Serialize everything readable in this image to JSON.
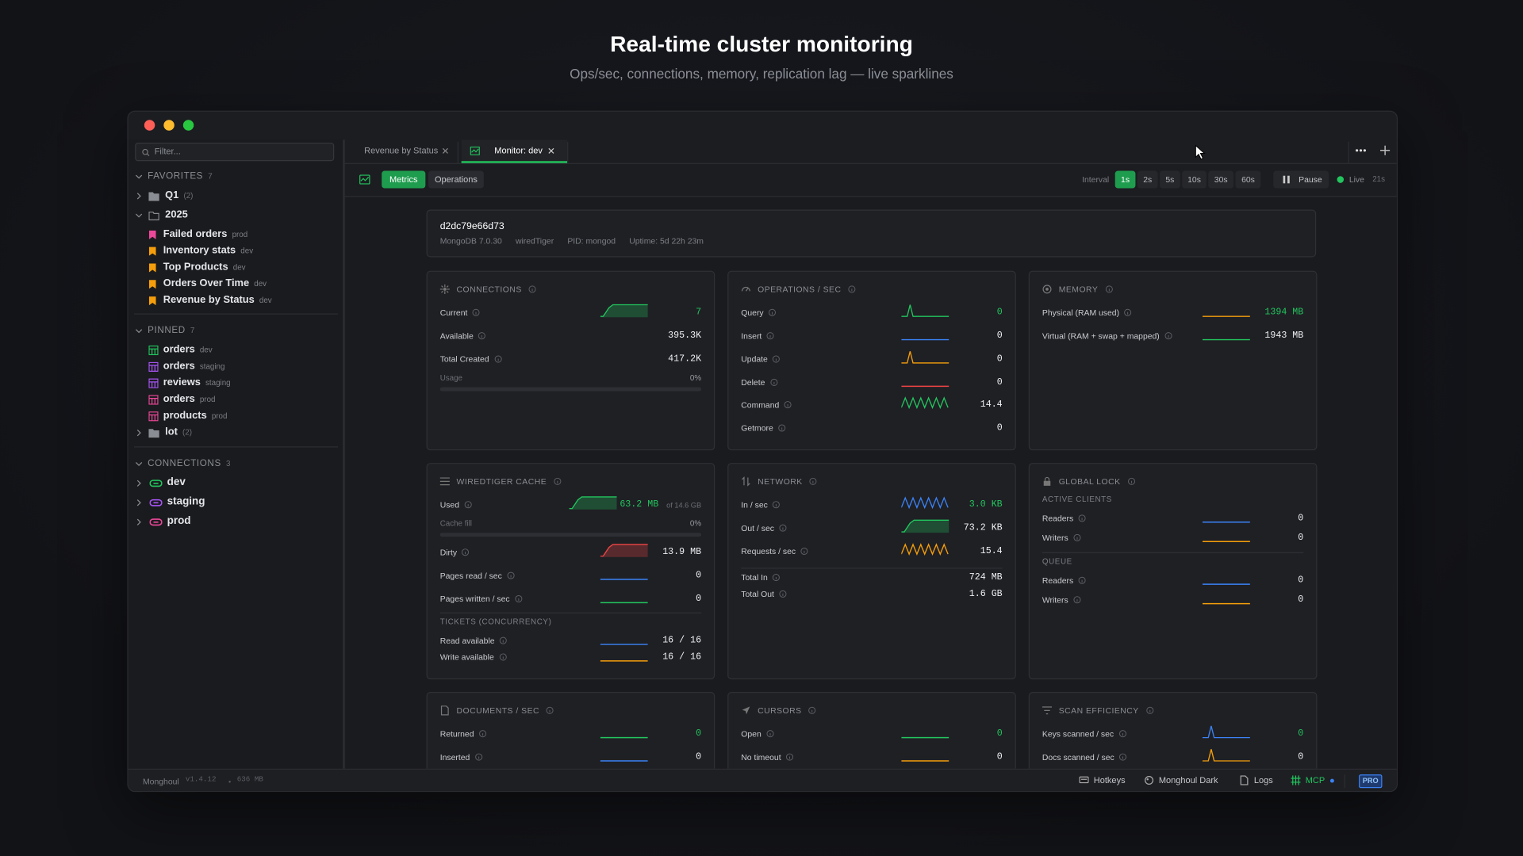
{
  "header": {
    "title": "Real-time cluster monitoring",
    "subtitle": "Ops/sec, connections, memory, replication lag — live sparklines"
  },
  "sidebar": {
    "filter": "Filter...",
    "sections": [
      {
        "title": "FAVORITES",
        "count": 7,
        "items": [
          {
            "label": "Q1",
            "count": "(2)"
          },
          {
            "label": "2025",
            "children": [
              {
                "label": "Failed orders",
                "env": "prod"
              },
              {
                "label": "Inventory stats",
                "env": "dev"
              },
              {
                "label": "Top Products",
                "env": "dev"
              },
              {
                "label": "Orders Over Time",
                "env": "dev"
              },
              {
                "label": "Revenue by Status",
                "env": "dev"
              }
            ]
          }
        ]
      },
      {
        "title": "PINNED",
        "count": 7,
        "items": [
          {
            "label": "orders",
            "env": "dev"
          },
          {
            "label": "orders",
            "env": "staging"
          },
          {
            "label": "reviews",
            "env": "staging"
          },
          {
            "label": "orders",
            "env": "prod"
          },
          {
            "label": "products",
            "env": "prod"
          },
          {
            "label": "lot",
            "count": "(2)"
          }
        ]
      },
      {
        "title": "CONNECTIONS",
        "count": 3,
        "items": [
          {
            "label": "dev"
          },
          {
            "label": "staging"
          },
          {
            "label": "prod"
          }
        ]
      }
    ]
  },
  "tabs": [
    "Revenue by Status",
    "Monitor: dev"
  ],
  "toolbar": {
    "views": [
      "Metrics",
      "Operations"
    ],
    "interval_label": "Interval",
    "intervals": [
      "1s",
      "2s",
      "5s",
      "10s",
      "30s",
      "60s"
    ],
    "pause": "Pause",
    "live": "Live",
    "elapsed": "21s"
  },
  "host": {
    "id": "d2dc79e66d73",
    "meta": [
      "MongoDB 7.0.30",
      "wiredTiger",
      "PID: mongod",
      "Uptime: 5d 22h 23m"
    ]
  },
  "cards": [
    {
      "title": "CONNECTIONS",
      "rows": [
        {
          "label": "Current",
          "value": 7
        },
        {
          "label": "Available",
          "value": "395.3K"
        },
        {
          "label": "Total Created",
          "value": "417.2K"
        },
        {
          "label": "Usage",
          "value": "0%"
        }
      ]
    },
    {
      "title": "OPERATIONS / SEC",
      "rows": [
        {
          "label": "Query",
          "value": 0
        },
        {
          "label": "Insert",
          "value": 0
        },
        {
          "label": "Update",
          "value": 0
        },
        {
          "label": "Delete",
          "value": 0
        },
        {
          "label": "Command",
          "value": 14.4
        },
        {
          "label": "Getmore",
          "value": 0
        }
      ]
    },
    {
      "title": "MEMORY",
      "rows": [
        {
          "label": "Physical (RAM used)",
          "value": "1394 MB"
        },
        {
          "label": "Virtual (RAM + swap + mapped)",
          "value": "1943 MB"
        }
      ]
    },
    {
      "title": "WIREDTIGER CACHE",
      "rows": [
        {
          "label": "Used",
          "value": "63.2 MB",
          "note": "of 14.6 GB"
        },
        {
          "label": "Cache fill",
          "value": "0%"
        },
        {
          "label": "Dirty",
          "value": "13.9 MB"
        },
        {
          "label": "Pages read / sec",
          "value": 0
        },
        {
          "label": "Pages written / sec",
          "value": 0
        },
        {
          "heading": "TICKETS (CONCURRENCY)"
        },
        {
          "label": "Read available",
          "value": "16 / 16"
        },
        {
          "label": "Write available",
          "value": "16 / 16"
        }
      ]
    },
    {
      "title": "NETWORK",
      "rows": [
        {
          "label": "In / sec",
          "value": "3.0 KB"
        },
        {
          "label": "Out / sec",
          "value": "73.2 KB"
        },
        {
          "label": "Requests / sec",
          "value": 15.4
        },
        {
          "label": "Total In",
          "value": "724 MB"
        },
        {
          "label": "Total Out",
          "value": "1.6 GB"
        }
      ]
    },
    {
      "title": "GLOBAL LOCK",
      "rows": [
        {
          "heading": "ACTIVE CLIENTS"
        },
        {
          "label": "Readers",
          "value": 0
        },
        {
          "label": "Writers",
          "value": 0
        },
        {
          "heading": "QUEUE"
        },
        {
          "label": "Readers",
          "value": 0
        },
        {
          "label": "Writers",
          "value": 0
        }
      ]
    },
    {
      "title": "DOCUMENTS / SEC",
      "rows": [
        {
          "label": "Returned",
          "value": 0
        },
        {
          "label": "Inserted",
          "value": 0
        }
      ]
    },
    {
      "title": "CURSORS",
      "rows": [
        {
          "label": "Open",
          "value": 0
        },
        {
          "label": "No timeout",
          "value": 0
        }
      ]
    },
    {
      "title": "SCAN EFFICIENCY",
      "rows": [
        {
          "label": "Keys scanned / sec",
          "value": 0
        },
        {
          "label": "Docs scanned / sec",
          "value": 0
        }
      ]
    }
  ],
  "statusbar": {
    "app": "Monghoul",
    "version": "v1.4.12",
    "memory": "636 MB",
    "items": [
      "Hotkeys",
      "Monghoul Dark",
      "Logs",
      "MCP"
    ],
    "badge": "PRO"
  }
}
